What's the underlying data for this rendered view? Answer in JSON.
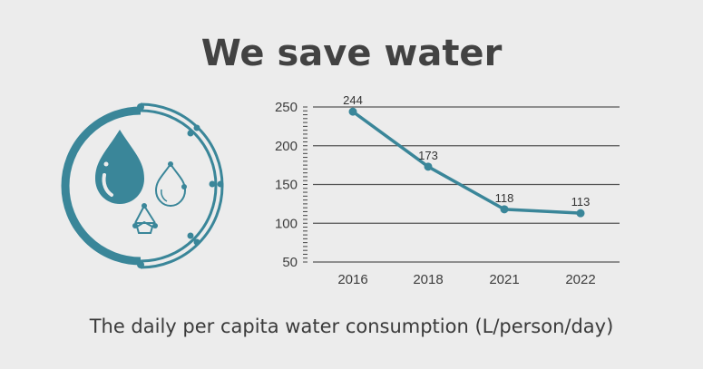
{
  "header": {
    "title": "We save water"
  },
  "caption": "The daily per capita water consumption (L/person/day)",
  "colors": {
    "accent": "#3a8699",
    "grid": "#555555",
    "text": "#424242",
    "background": "#ececec"
  },
  "icon": {
    "name": "water-drops-circle-icon"
  },
  "chart_data": {
    "type": "line",
    "title": "",
    "xlabel": "",
    "ylabel": "",
    "categories": [
      "2016",
      "2018",
      "2021",
      "2022"
    ],
    "series": [
      {
        "name": "Daily per capita water consumption (L/person/day)",
        "values": [
          244,
          173,
          118,
          113
        ]
      }
    ],
    "data_labels": [
      "244",
      "173",
      "118",
      "113"
    ],
    "ylim": [
      50,
      250
    ],
    "yticks": [
      50,
      100,
      150,
      200,
      250
    ],
    "ytick_labels": [
      "50",
      "100",
      "150",
      "200",
      "250"
    ],
    "minor_tick_step": 5,
    "grid": true,
    "legend": "none"
  }
}
